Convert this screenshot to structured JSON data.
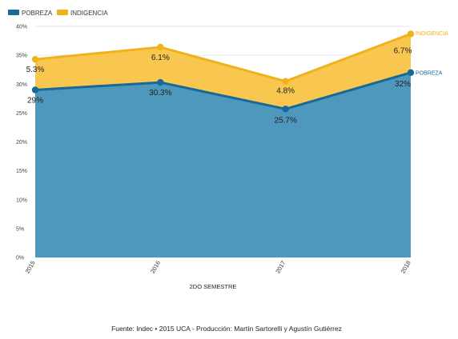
{
  "chart_data": {
    "type": "area",
    "stacked": true,
    "categories": [
      "2015",
      "2016",
      "2017",
      "2018"
    ],
    "xlabel": "2DO SEMESTRE",
    "ylabel": "",
    "ylim": [
      0,
      40
    ],
    "yticks": [
      "0%",
      "5%",
      "10%",
      "15%",
      "20%",
      "25%",
      "30%",
      "35%",
      "40%"
    ],
    "grid": true,
    "legend_position": "top-left",
    "series": [
      {
        "name": "POBREZA",
        "color": "#17699a",
        "fill": "#4e97bd",
        "values": [
          29,
          30.3,
          25.7,
          32
        ],
        "labels": [
          "29%",
          "30.3%",
          "25.7%",
          "32%"
        ],
        "end_label": "POBREZA"
      },
      {
        "name": "INDIGENCIA",
        "color": "#f0b21a",
        "fill": "#f9c74f",
        "values": [
          5.3,
          6.1,
          4.8,
          6.7
        ],
        "labels": [
          "5.3%",
          "6.1%",
          "4.8%",
          "6.7%"
        ],
        "end_label": "INDIGENCIA"
      }
    ],
    "source": "Fuente: Indec • 2015 UCA - Producción: Martín Sartorelli y Agustín Gutiérrez"
  }
}
